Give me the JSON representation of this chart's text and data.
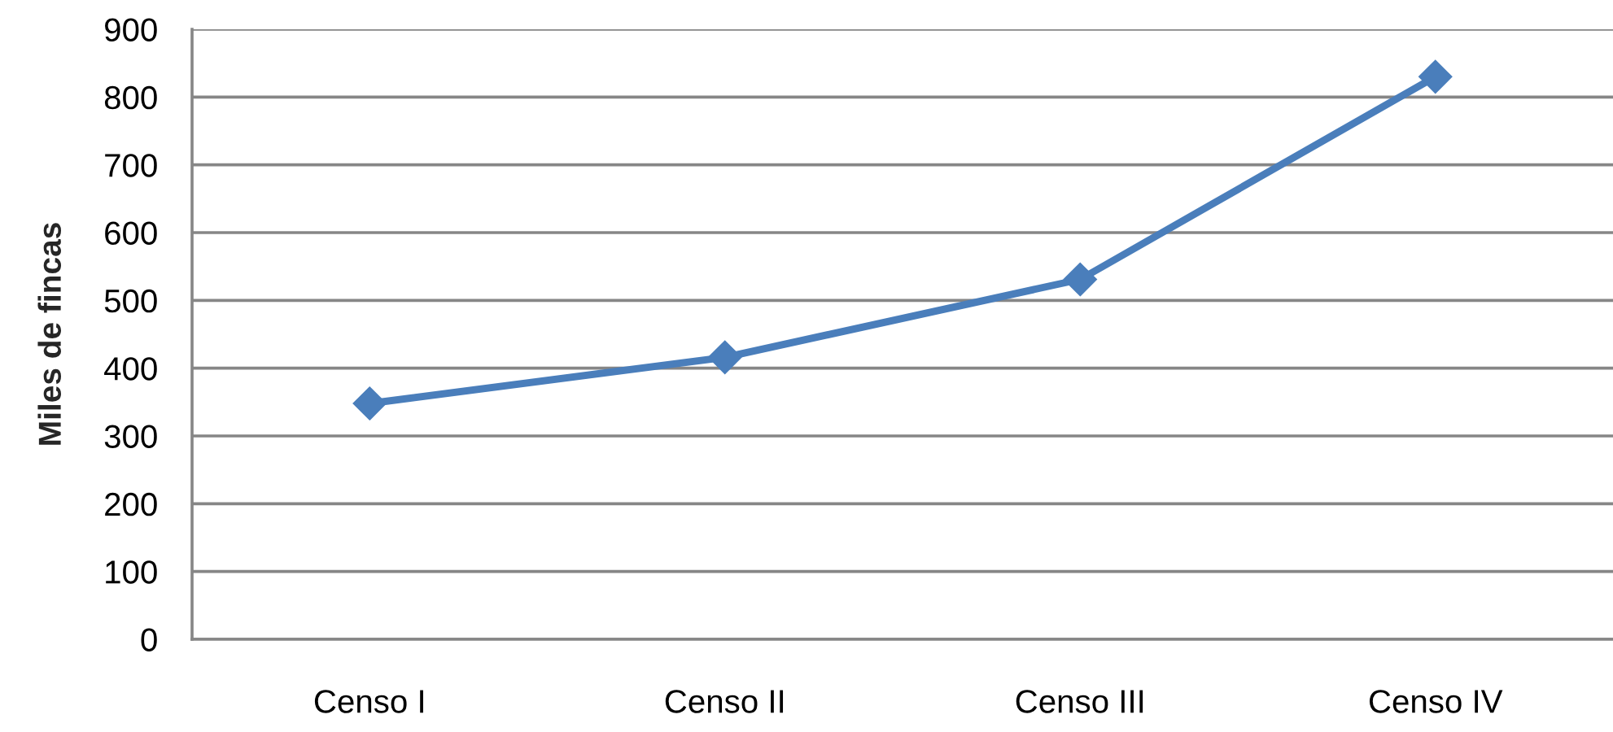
{
  "chart_data": {
    "type": "line",
    "ylabel": "Miles de fincas",
    "categories": [
      "Censo I",
      "Censo II",
      "Censo III",
      "Censo IV"
    ],
    "series": [
      {
        "color": "#4a7ebb",
        "values": [
          348,
          416,
          531,
          830
        ]
      }
    ],
    "ylim": [
      0,
      900
    ],
    "yticks": [
      0,
      100,
      200,
      300,
      400,
      500,
      600,
      700,
      800,
      900
    ],
    "grid": "y",
    "marker": "diamond",
    "line_style": "solid"
  }
}
